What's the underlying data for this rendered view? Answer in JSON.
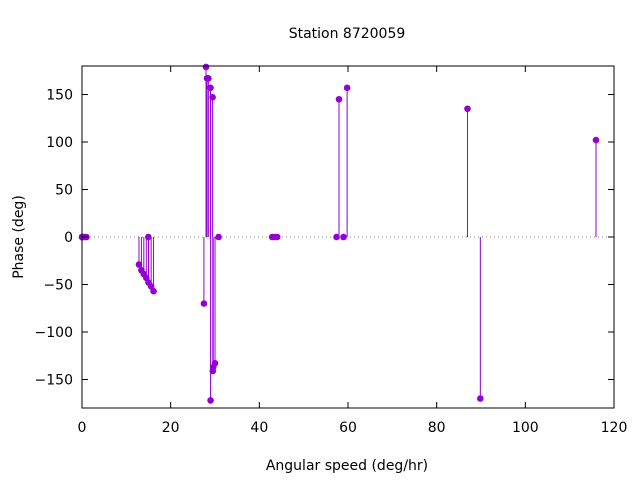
{
  "chart_data": {
    "type": "scatter",
    "style": "impulses-with-points",
    "title": "Station 8720059",
    "xlabel": "Angular speed (deg/hr)",
    "ylabel": "Phase (deg)",
    "xlim": [
      0,
      120
    ],
    "ylim": [
      -180,
      180
    ],
    "xticks": [
      0,
      20,
      40,
      60,
      80,
      100,
      120
    ],
    "yticks": [
      -150,
      -100,
      -50,
      0,
      50,
      100,
      150
    ],
    "zero_line": true,
    "grid": false,
    "color": "#9400d3",
    "points": [
      {
        "x": 0.0,
        "y": 0
      },
      {
        "x": 0.04,
        "y": 0
      },
      {
        "x": 0.08,
        "y": 0
      },
      {
        "x": 0.5,
        "y": 0
      },
      {
        "x": 1.0,
        "y": 0
      },
      {
        "x": 12.85,
        "y": -29
      },
      {
        "x": 13.4,
        "y": -35
      },
      {
        "x": 13.94,
        "y": -39
      },
      {
        "x": 14.5,
        "y": -43
      },
      {
        "x": 14.96,
        "y": 0
      },
      {
        "x": 15.0,
        "y": -48
      },
      {
        "x": 15.6,
        "y": -52
      },
      {
        "x": 16.14,
        "y": -57
      },
      {
        "x": 27.5,
        "y": -70
      },
      {
        "x": 27.97,
        "y": 179
      },
      {
        "x": 28.2,
        "y": 167
      },
      {
        "x": 28.5,
        "y": 167
      },
      {
        "x": 28.99,
        "y": 157
      },
      {
        "x": 29.0,
        "y": -172
      },
      {
        "x": 29.46,
        "y": 147
      },
      {
        "x": 29.5,
        "y": -141
      },
      {
        "x": 29.6,
        "y": -137
      },
      {
        "x": 30.0,
        "y": -133
      },
      {
        "x": 30.8,
        "y": 0
      },
      {
        "x": 42.9,
        "y": 0
      },
      {
        "x": 43.47,
        "y": 0
      },
      {
        "x": 44.03,
        "y": 0
      },
      {
        "x": 57.42,
        "y": 0
      },
      {
        "x": 57.97,
        "y": 145
      },
      {
        "x": 58.98,
        "y": 0
      },
      {
        "x": 59.8,
        "y": 157
      },
      {
        "x": 86.95,
        "y": 135
      },
      {
        "x": 89.85,
        "y": -170
      },
      {
        "x": 115.94,
        "y": 102
      }
    ]
  }
}
